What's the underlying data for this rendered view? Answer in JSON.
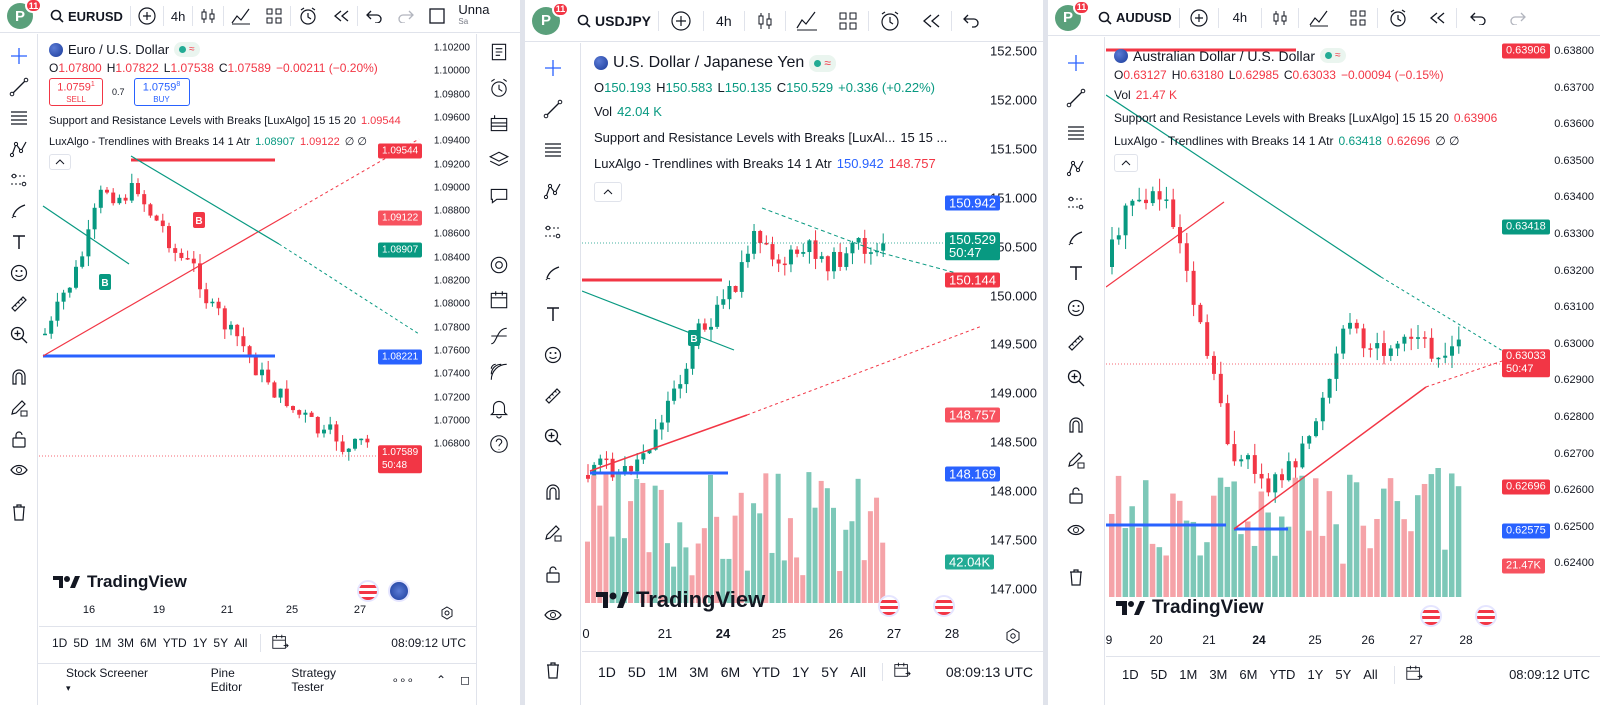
{
  "panels": [
    {
      "topbar": {
        "avatar": "P",
        "badge": "11",
        "symbol": "EURUSD",
        "interval": "4h",
        "layout_name": "Unna",
        "layout_sub": "Sa"
      },
      "legend": {
        "title": "Euro / U.S. Dollar",
        "ohlc": {
          "o_label": "O",
          "o": "1.07800",
          "h_label": "H",
          "h": "1.07822",
          "l_label": "L",
          "l": "1.07538",
          "c_label": "C",
          "c": "1.07589",
          "chg": "−0.00211 (−0.20%)"
        },
        "sell_price": "1.0759",
        "sell_sup": "1",
        "sell_label": "SELL",
        "spread": "0.7",
        "buy_price": "1.0759",
        "buy_sup": "8",
        "buy_label": "BUY",
        "ind1": "Support and Resistance Levels with Breaks [LuxAlgo] 15 15 20",
        "ind1_v1": "1.09544",
        "ind2": "LuxAlgo - Trendlines with Breaks 14 1 Atr",
        "ind2_v1": "1.08907",
        "ind2_v2": "1.09122",
        "ind2_v3": "∅ ∅"
      },
      "price_ticks": [
        "1.10200",
        "1.10000",
        "1.09800",
        "1.09600",
        "1.09400",
        "1.09200",
        "1.09000",
        "1.08800",
        "1.08600",
        "1.08400",
        "1.08200",
        "1.08000",
        "1.07800",
        "1.07600",
        "1.07400",
        "1.07200",
        "1.07000",
        "1.06800"
      ],
      "price_labels": [
        {
          "text": "1.09544",
          "color": "#f23645"
        },
        {
          "text": "1.09122",
          "color": "#f7525f"
        },
        {
          "text": "1.08907",
          "color": "#089981"
        },
        {
          "text": "1.08221",
          "color": "#2962ff"
        },
        {
          "text": "1.07589",
          "text2": "50:48",
          "color": "#f23645"
        }
      ],
      "time_ticks": [
        "16",
        "19",
        "21",
        "25",
        "27"
      ],
      "ranges": [
        "1D",
        "5D",
        "1M",
        "3M",
        "6M",
        "YTD",
        "1Y",
        "5Y",
        "All"
      ],
      "time_utc": "08:09:12 UTC",
      "footer_tabs": [
        "Stock Screener",
        "Pine Editor",
        "Strategy Tester",
        "∘∘∘"
      ],
      "brand": "TradingView"
    },
    {
      "topbar": {
        "avatar": "P",
        "badge": "11",
        "symbol": "USDJPY",
        "interval": "4h"
      },
      "legend": {
        "title": "U.S. Dollar / Japanese Yen",
        "ohlc": {
          "o_label": "O",
          "o": "150.193",
          "h_label": "H",
          "h": "150.583",
          "l_label": "L",
          "l": "150.135",
          "c_label": "C",
          "c": "150.529",
          "chg": "+0.336 (+0.22%)"
        },
        "vol_label": "Vol",
        "vol": "42.04 K",
        "ind1": "Support and Resistance Levels with Breaks [LuxAl...",
        "ind1_params": "15 15 ...",
        "ind2": "LuxAlgo - Trendlines with Breaks 14 1 Atr",
        "ind2_v1": "150.942",
        "ind2_v2": "148.757"
      },
      "price_ticks": [
        "152.500",
        "152.000",
        "151.500",
        "151.000",
        "150.500",
        "150.000",
        "149.500",
        "149.000",
        "148.500",
        "148.000",
        "147.500",
        "147.000"
      ],
      "price_labels": [
        {
          "text": "150.942",
          "color": "#2962ff"
        },
        {
          "text": "150.529",
          "text2": "50:47",
          "color": "#089981"
        },
        {
          "text": "150.144",
          "color": "#f23645"
        },
        {
          "text": "148.757",
          "color": "#f7525f"
        },
        {
          "text": "148.169",
          "color": "#2962ff"
        },
        {
          "text": "42.04K",
          "color": "#22ab94"
        }
      ],
      "time_ticks": [
        "0",
        "21",
        "24",
        "25",
        "26",
        "27",
        "28"
      ],
      "ranges": [
        "1D",
        "5D",
        "1M",
        "3M",
        "6M",
        "YTD",
        "1Y",
        "5Y",
        "All"
      ],
      "time_utc": "08:09:13 UTC",
      "brand": "TradingView"
    },
    {
      "topbar": {
        "avatar": "P",
        "badge": "11",
        "symbol": "AUDUSD",
        "interval": "4h"
      },
      "legend": {
        "title": "Australian Dollar / U.S. Dollar",
        "ohlc": {
          "o_label": "O",
          "o": "0.63127",
          "h_label": "H",
          "h": "0.63180",
          "l_label": "L",
          "l": "0.62985",
          "c_label": "C",
          "c": "0.63033",
          "chg": "−0.00094 (−0.15%)"
        },
        "vol_label": "Vol",
        "vol": "21.47 K",
        "ind1": "Support and Resistance Levels with Breaks [LuxAlgo] 15 15 20",
        "ind1_v1": "0.63906",
        "ind2": "LuxAlgo - Trendlines with Breaks 14 1 Atr",
        "ind2_v1": "0.63418",
        "ind2_v2": "0.62696",
        "ind2_v3": "∅ ∅"
      },
      "price_ticks": [
        "0.63800",
        "0.63700",
        "0.63600",
        "0.63500",
        "0.63400",
        "0.63300",
        "0.63200",
        "0.63100",
        "0.63000",
        "0.62900",
        "0.62800",
        "0.62700",
        "0.62600",
        "0.62500",
        "0.62400"
      ],
      "price_labels": [
        {
          "text": "0.63906",
          "color": "#f23645"
        },
        {
          "text": "0.63418",
          "color": "#089981"
        },
        {
          "text": "0.63033",
          "text2": "50:47",
          "color": "#f23645"
        },
        {
          "text": "0.62696",
          "color": "#f23645"
        },
        {
          "text": "0.62575",
          "color": "#2962ff"
        },
        {
          "text": "21.47K",
          "color": "#f7525f"
        }
      ],
      "time_ticks": [
        "9",
        "20",
        "21",
        "24",
        "25",
        "26",
        "27",
        "28"
      ],
      "ranges": [
        "1D",
        "5D",
        "1M",
        "3M",
        "6M",
        "YTD",
        "1Y",
        "5Y",
        "All"
      ],
      "time_utc": "08:09:12 UTC",
      "brand": "TradingView"
    }
  ],
  "colors": {
    "up": "#089981",
    "down": "#f23645",
    "vol_up": "#7dc8b8",
    "vol_down": "#f5a3a8",
    "support": "#2962ff",
    "resistance": "#f23645",
    "trend_down": "#089981",
    "trend_up": "#f23645"
  }
}
